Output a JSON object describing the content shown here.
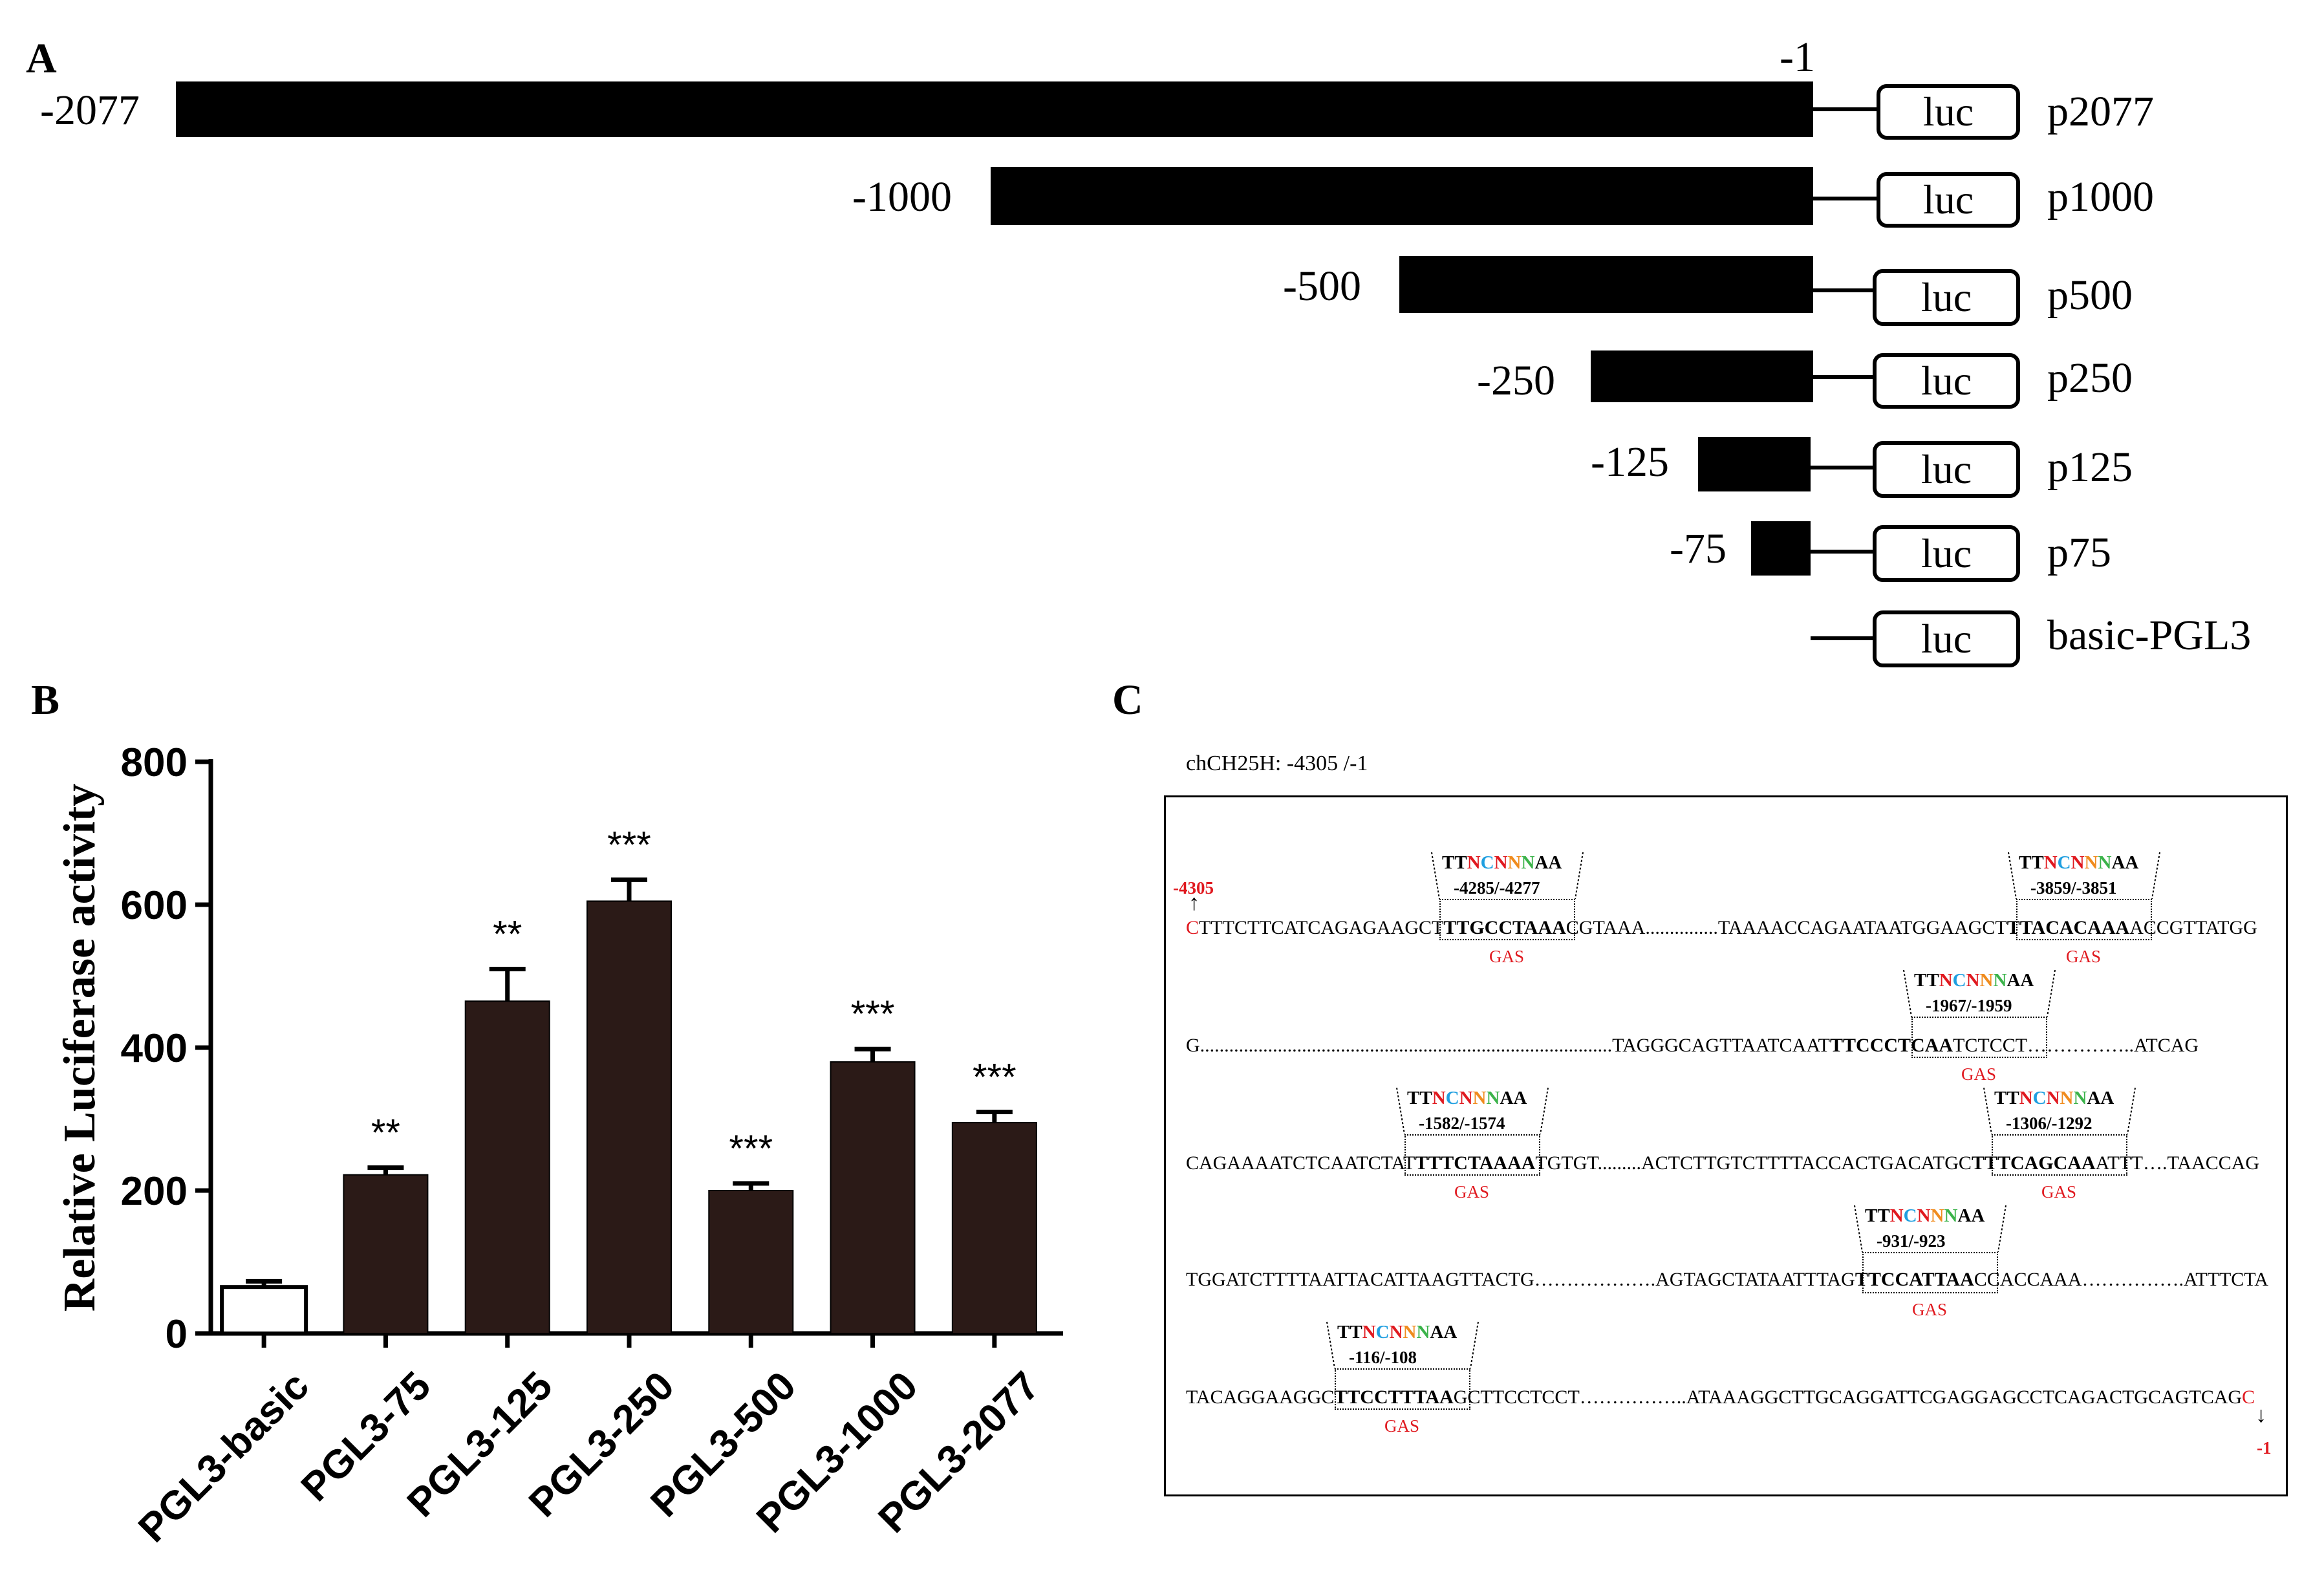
{
  "panelA": {
    "letter": "A",
    "end_label": "-1",
    "luc_label": "luc",
    "constructs": [
      {
        "start": "-2077",
        "name": "p2077"
      },
      {
        "start": "-1000",
        "name": "p1000"
      },
      {
        "start": "-500",
        "name": "p500"
      },
      {
        "start": "-250",
        "name": "p250"
      },
      {
        "start": "-125",
        "name": "p125"
      },
      {
        "start": "-75",
        "name": "p75"
      },
      {
        "start": "",
        "name": "basic-PGL3"
      }
    ]
  },
  "panelB": {
    "letter": "B"
  },
  "chart_data": {
    "type": "bar",
    "ylabel": "Relative Luciferase activity",
    "xlabel": "",
    "ylim": [
      0,
      800
    ],
    "yticks": [
      0,
      200,
      400,
      600,
      800
    ],
    "categories": [
      "PGL3-basic",
      "PGL3-75",
      "PGL3-125",
      "PGL3-250",
      "PGL3-500",
      "PGL3-1000",
      "PGL3-2077"
    ],
    "values": [
      65,
      222,
      465,
      605,
      200,
      380,
      295
    ],
    "errors": [
      8,
      10,
      45,
      30,
      10,
      18,
      15
    ],
    "significance": [
      "",
      "**",
      "**",
      "***",
      "***",
      "***",
      "***"
    ],
    "bar_colors": [
      "#ffffff",
      "#2b1a17",
      "#2b1a17",
      "#2b1a17",
      "#2b1a17",
      "#2b1a17",
      "#2b1a17"
    ]
  },
  "panelC": {
    "letter": "C",
    "title": "chCH25H: -4305 /-1",
    "consensus": "TTNCNNNAA",
    "gas_label": "GAS",
    "start_marker": "-4305",
    "end_marker": "-1",
    "sites": [
      "-4285/-4277",
      "-3859/-3851",
      "-1967/-1959",
      "-1582/-1574",
      "-1306/-1292",
      "-931/-923",
      "-116/-108"
    ],
    "row1": {
      "start_base": "C",
      "seg1": "TTTCTTCATCAGAGAAGCT",
      "site1": "TTGCCTAAA",
      "seg2": "CGTAAA...............TAAAACCAGAATAATGGAAGCT",
      "site2": "TTACACAAA",
      "seg3": "ACCGTTATGG"
    },
    "row2": {
      "seg1": "G.....................................................................................TAGGGCAGTTAATCAAT",
      "site1": "TTCCCTCAA",
      "seg2": "TCTCCT……………..ATCAG"
    },
    "row3": {
      "seg1": "CAGAAAATCTCAATCTAT",
      "site1": "TTTCTAAAA",
      "seg2": "TGTGT.........ACTCTTGTCTTTTACCACTGACATGC",
      "site2": "TTTCAGCAA",
      "seg3": "ATTT….TAACCAG"
    },
    "row4": {
      "seg1": "TGGATCTTTTAATTACATTAAGTTACTG……………….AGTAGCTATAATTTAG",
      "site1": "TTCCATTAA",
      "seg2": "CCACCAAA…………….ATTTCTA"
    },
    "row5": {
      "seg1": "TACAGGAAGGC",
      "site1": "TTCCTTTAA",
      "seg2": "GCTTCCTCCT……………..ATAAAGGCTTGCAGGATTCGAGGAGCCTCAGACTGCAGTCAG",
      "end_base": "C"
    }
  }
}
